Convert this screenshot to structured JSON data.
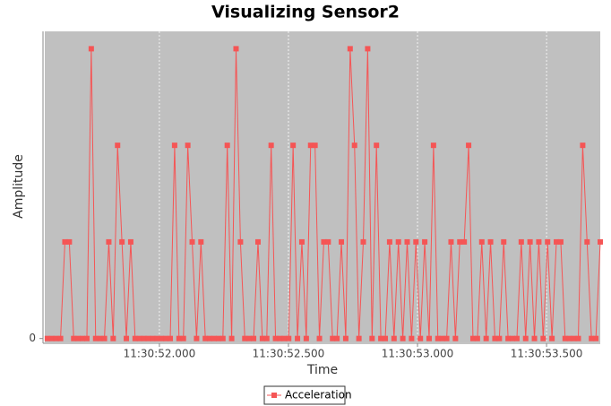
{
  "chart_data": {
    "type": "line",
    "title": "Visualizing Sensor2",
    "x_label": "Time",
    "y_label": "Amplitude",
    "x": [
      51.566,
      51.583,
      51.6,
      51.617,
      51.634,
      51.651,
      51.668,
      51.685,
      51.702,
      51.719,
      51.736,
      51.753,
      51.77,
      51.787,
      51.804,
      51.821,
      51.838,
      51.855,
      51.872,
      51.889,
      51.906,
      51.923,
      51.94,
      51.957,
      51.974,
      51.991,
      52.008,
      52.025,
      52.042,
      52.059,
      52.076,
      52.093,
      52.11,
      52.127,
      52.144,
      52.161,
      52.178,
      52.195,
      52.212,
      52.229,
      52.246,
      52.263,
      52.28,
      52.297,
      52.314,
      52.331,
      52.348,
      52.365,
      52.382,
      52.399,
      52.416,
      52.433,
      52.45,
      52.467,
      52.484,
      52.501,
      52.518,
      52.535,
      52.552,
      52.569,
      52.586,
      52.603,
      52.62,
      52.637,
      52.654,
      52.671,
      52.688,
      52.705,
      52.722,
      52.739,
      52.756,
      52.773,
      52.79,
      52.807,
      52.824,
      52.841,
      52.858,
      52.875,
      52.892,
      52.909,
      52.926,
      52.943,
      52.96,
      52.977,
      52.994,
      53.011,
      53.028,
      53.045,
      53.062,
      53.079,
      53.096,
      53.113,
      53.13,
      53.147,
      53.164,
      53.181,
      53.198,
      53.215,
      53.232,
      53.249,
      53.266,
      53.283,
      53.3,
      53.317,
      53.334,
      53.351,
      53.368,
      53.385,
      53.402,
      53.419,
      53.436,
      53.453,
      53.47,
      53.487,
      53.504,
      53.521,
      53.538,
      53.555,
      53.572,
      53.589,
      53.606,
      53.623,
      53.64,
      53.657,
      53.674,
      53.691,
      53.708
    ],
    "series": [
      {
        "name": "Acceleration",
        "color": "#f55555",
        "values": [
          0,
          0,
          0,
          0,
          1,
          1,
          0,
          0,
          0,
          0,
          3,
          0,
          0,
          0,
          1,
          0,
          2,
          1,
          0,
          1,
          0,
          0,
          0,
          0,
          0,
          0,
          0,
          0,
          0,
          2,
          0,
          0,
          2,
          1,
          0,
          1,
          0,
          0,
          0,
          0,
          0,
          2,
          0,
          3,
          1,
          0,
          0,
          0,
          1,
          0,
          0,
          2,
          0,
          0,
          0,
          0,
          2,
          0,
          1,
          0,
          2,
          2,
          0,
          1,
          1,
          0,
          0,
          1,
          0,
          3,
          2,
          0,
          1,
          3,
          0,
          2,
          0,
          0,
          1,
          0,
          1,
          0,
          1,
          0,
          1,
          0,
          1,
          0,
          2,
          0,
          0,
          0,
          1,
          0,
          1,
          1,
          2,
          0,
          0,
          1,
          0,
          1,
          0,
          0,
          1,
          0,
          0,
          0,
          1,
          0,
          1,
          0,
          1,
          0,
          1,
          0,
          1,
          1,
          0,
          0,
          0,
          0,
          2,
          1,
          0,
          0,
          1
        ]
      }
    ],
    "xlim": [
      51.556,
      53.708
    ],
    "xticks": [
      {
        "value": 52,
        "label": "11:30:52.000"
      },
      {
        "value": 52.5,
        "label": "11:30:52.500"
      },
      {
        "value": 53,
        "label": "11:30:53.000"
      },
      {
        "value": 53.5,
        "label": "11:30:53.500"
      }
    ],
    "ylim": [
      -0.04,
      3.18
    ],
    "yticks": [
      0
    ],
    "grid": "x",
    "legend": "bottom"
  }
}
